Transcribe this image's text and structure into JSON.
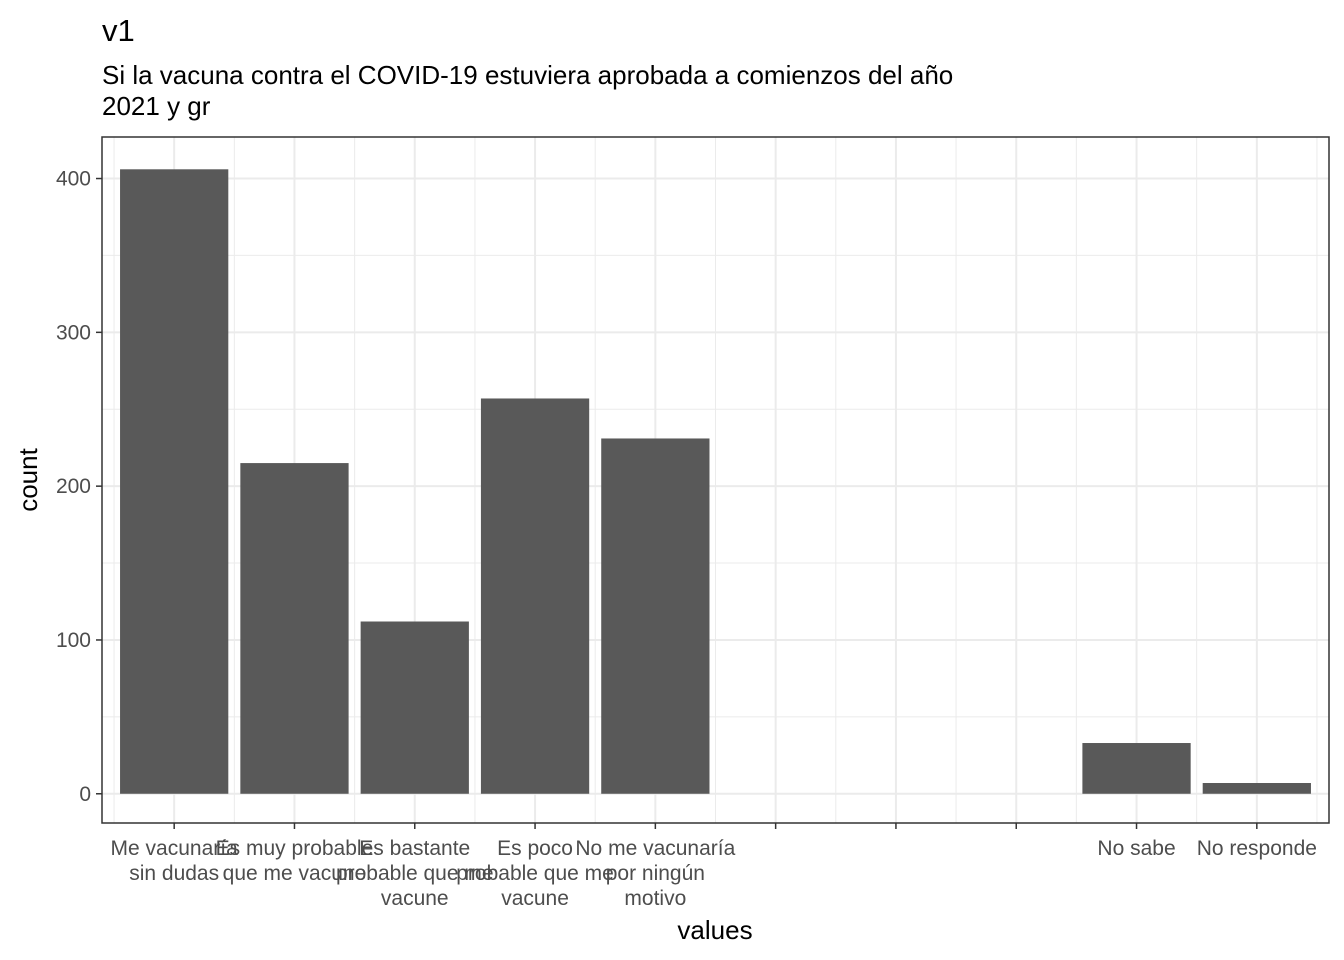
{
  "chart_data": {
    "type": "bar",
    "title": "v1",
    "subtitle": [
      "Si la vacuna contra el COVID-19 estuviera aprobada a comienzos del año",
      "2021 y gr"
    ],
    "xlabel": "values",
    "ylabel": "count",
    "categories": [
      [
        "Me vacunaría",
        "sin dudas"
      ],
      [
        "Es muy probable",
        "que me vacune"
      ],
      [
        "Es bastante",
        "probable que me",
        "vacune"
      ],
      [
        "Es poco",
        "probable que me",
        "vacune"
      ],
      [
        "No me vacunaría",
        "por ningún",
        "motivo"
      ],
      [
        ""
      ],
      [
        ""
      ],
      [
        ""
      ],
      [
        "No sabe"
      ],
      [
        "No responde"
      ]
    ],
    "values": [
      406,
      215,
      112,
      257,
      231,
      null,
      null,
      null,
      33,
      7
    ],
    "ylim": [
      -19,
      427
    ],
    "yticks": [
      0,
      100,
      200,
      300,
      400
    ],
    "bar_color": "#595959",
    "grid": true,
    "grid_color": "#ebebeb",
    "panel_border_color": "#333333",
    "legend": "none"
  }
}
